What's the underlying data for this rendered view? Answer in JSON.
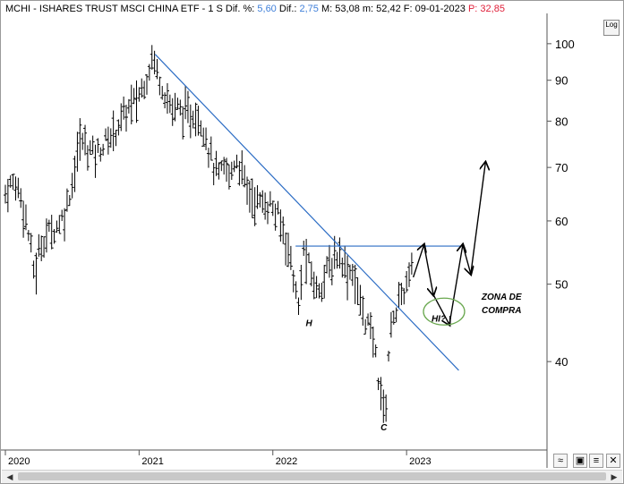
{
  "header": {
    "symbol": "MCHI - ISHARES TRUST MSCI CHINA ETF - ",
    "period": "1 S",
    "dif_pct_label": "Dif. %:",
    "dif_pct_value": "5,60",
    "dif_label": "Dif.:",
    "dif_value": "2,75",
    "m_label": "M:",
    "m_value": "53,08",
    "m_label2": "m:",
    "m2_value": "52,42",
    "f_label": "F:",
    "f_value": "09-01-2023",
    "p_label": "P:",
    "p_value": "32,85"
  },
  "log_button": "Log",
  "colors": {
    "trendline": "#2b6cc4",
    "bars": "#000000",
    "ellipse": "#6aa84f",
    "blue_text": "#3f7fd9",
    "red_text": "#e0203a"
  },
  "chart_data": {
    "type": "ohlc",
    "title": "MCHI - ISHARES TRUST MSCI CHINA ETF",
    "y_scale": "log",
    "ylim": [
      31,
      108
    ],
    "yticks": [
      40,
      50,
      60,
      70,
      80,
      90,
      100
    ],
    "xlim": [
      2019.98,
      2024.05
    ],
    "xticks": [
      {
        "x": 2020.0,
        "label": "2020"
      },
      {
        "x": 2021.0,
        "label": "2021"
      },
      {
        "x": 2022.0,
        "label": "2022"
      },
      {
        "x": 2023.0,
        "label": "2023"
      }
    ],
    "price_path": [
      [
        2020.0,
        65
      ],
      [
        2020.05,
        67
      ],
      [
        2020.1,
        66
      ],
      [
        2020.14,
        62
      ],
      [
        2020.18,
        57
      ],
      [
        2020.22,
        51
      ],
      [
        2020.26,
        56
      ],
      [
        2020.32,
        58
      ],
      [
        2020.38,
        59
      ],
      [
        2020.44,
        61
      ],
      [
        2020.5,
        67
      ],
      [
        2020.56,
        76
      ],
      [
        2020.62,
        74
      ],
      [
        2020.68,
        73
      ],
      [
        2020.74,
        75
      ],
      [
        2020.8,
        77
      ],
      [
        2020.86,
        80
      ],
      [
        2020.92,
        83
      ],
      [
        2020.98,
        85
      ],
      [
        2021.05,
        90
      ],
      [
        2021.1,
        97
      ],
      [
        2021.13,
        93
      ],
      [
        2021.18,
        88
      ],
      [
        2021.24,
        83
      ],
      [
        2021.3,
        83
      ],
      [
        2021.36,
        81
      ],
      [
        2021.42,
        82
      ],
      [
        2021.48,
        79
      ],
      [
        2021.52,
        74
      ],
      [
        2021.56,
        70
      ],
      [
        2021.6,
        68
      ],
      [
        2021.64,
        70
      ],
      [
        2021.68,
        68
      ],
      [
        2021.72,
        72
      ],
      [
        2021.76,
        70
      ],
      [
        2021.8,
        66
      ],
      [
        2021.86,
        64
      ],
      [
        2021.92,
        63
      ],
      [
        2021.98,
        63
      ],
      [
        2022.05,
        60
      ],
      [
        2022.1,
        57
      ],
      [
        2022.15,
        52
      ],
      [
        2022.19,
        46
      ],
      [
        2022.23,
        55
      ],
      [
        2022.28,
        52
      ],
      [
        2022.33,
        49
      ],
      [
        2022.38,
        51
      ],
      [
        2022.44,
        53
      ],
      [
        2022.5,
        55
      ],
      [
        2022.55,
        52
      ],
      [
        2022.6,
        52
      ],
      [
        2022.64,
        48
      ],
      [
        2022.7,
        45
      ],
      [
        2022.76,
        42
      ],
      [
        2022.8,
        37
      ],
      [
        2022.84,
        34
      ],
      [
        2022.87,
        42
      ],
      [
        2022.9,
        46
      ],
      [
        2022.94,
        47
      ],
      [
        2022.98,
        49
      ],
      [
        2023.02,
        51
      ],
      [
        2023.04,
        52
      ]
    ],
    "trendlines": [
      {
        "from": [
          2021.12,
          97
        ],
        "to": [
          2023.39,
          39
        ]
      },
      {
        "from": [
          2022.17,
          55.8
        ],
        "to": [
          2023.42,
          55.8
        ]
      }
    ],
    "projection": [
      [
        2023.05,
        51
      ],
      [
        2023.13,
        56
      ],
      [
        2023.2,
        48.5
      ],
      [
        2023.32,
        44.5
      ],
      [
        2023.42,
        56
      ],
      [
        2023.48,
        51.5
      ],
      [
        2023.59,
        71
      ]
    ],
    "annotations": [
      {
        "text": "H",
        "x": 2022.27,
        "y": 44.3
      },
      {
        "text": "C",
        "x": 2022.83,
        "y": 32.8
      },
      {
        "text": "HI?",
        "x": 2023.24,
        "y": 44.9
      },
      {
        "text": "ZONA DE",
        "x": 2023.71,
        "y": 47.8
      },
      {
        "text": "COMPRA",
        "x": 2023.71,
        "y": 46.0
      }
    ],
    "ellipse": {
      "x": 2023.28,
      "y": 46.2,
      "label": "HI? zone"
    }
  }
}
